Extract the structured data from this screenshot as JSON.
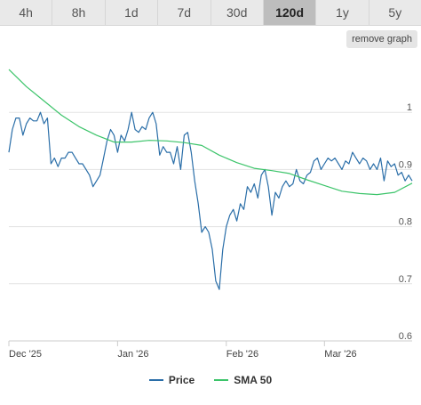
{
  "tabs": [
    {
      "label": "4h",
      "active": false
    },
    {
      "label": "8h",
      "active": false
    },
    {
      "label": "1d",
      "active": false
    },
    {
      "label": "7d",
      "active": false
    },
    {
      "label": "30d",
      "active": false
    },
    {
      "label": "120d",
      "active": true
    },
    {
      "label": "1y",
      "active": false
    },
    {
      "label": "5y",
      "active": false
    }
  ],
  "remove_graph_label": "remove graph",
  "colors": {
    "price": "#2a6ea8",
    "sma": "#3cc46a",
    "grid": "#e3e3e3",
    "tab_active": "#bdbdbd"
  },
  "chart_data": {
    "type": "line",
    "title": "",
    "xlabel": "",
    "ylabel": "",
    "x_tick_labels": [
      "Dec '25",
      "Jan '26",
      "Feb '26",
      "Mar '26"
    ],
    "x_tick_days": [
      0,
      31,
      62,
      90
    ],
    "y_ticks": [
      0.6,
      0.7,
      0.8,
      0.9,
      1
    ],
    "y_tick_labels": [
      "0.6",
      "0.7",
      "0.8",
      "0.9",
      "1"
    ],
    "ylim": [
      0.6,
      1.1
    ],
    "xlim": [
      0,
      115
    ],
    "legend_position": "bottom",
    "grid": true,
    "series": [
      {
        "name": "Price",
        "x": [
          0,
          1,
          2,
          3,
          4,
          5,
          6,
          7,
          8,
          9,
          10,
          11,
          12,
          13,
          14,
          15,
          16,
          17,
          18,
          19,
          20,
          21,
          22,
          23,
          24,
          25,
          26,
          27,
          28,
          29,
          30,
          31,
          32,
          33,
          34,
          35,
          36,
          37,
          38,
          39,
          40,
          41,
          42,
          43,
          44,
          45,
          46,
          47,
          48,
          49,
          50,
          51,
          52,
          53,
          54,
          55,
          56,
          57,
          58,
          59,
          60,
          61,
          62,
          63,
          64,
          65,
          66,
          67,
          68,
          69,
          70,
          71,
          72,
          73,
          74,
          75,
          76,
          77,
          78,
          79,
          80,
          81,
          82,
          83,
          84,
          85,
          86,
          87,
          88,
          89,
          90,
          91,
          92,
          93,
          94,
          95,
          96,
          97,
          98,
          99,
          100,
          101,
          102,
          103,
          104,
          105,
          106,
          107,
          108,
          109,
          110,
          111,
          112,
          113,
          114,
          115
        ],
        "values": [
          0.93,
          0.97,
          0.99,
          0.99,
          0.96,
          0.98,
          0.99,
          0.985,
          0.985,
          1.0,
          0.98,
          0.99,
          0.91,
          0.92,
          0.905,
          0.92,
          0.92,
          0.93,
          0.93,
          0.92,
          0.91,
          0.91,
          0.9,
          0.89,
          0.87,
          0.88,
          0.89,
          0.92,
          0.95,
          0.97,
          0.96,
          0.93,
          0.96,
          0.95,
          0.97,
          1.0,
          0.97,
          0.965,
          0.975,
          0.97,
          0.99,
          1.0,
          0.98,
          0.925,
          0.94,
          0.93,
          0.93,
          0.91,
          0.94,
          0.9,
          0.96,
          0.965,
          0.93,
          0.88,
          0.84,
          0.79,
          0.8,
          0.79,
          0.76,
          0.705,
          0.69,
          0.76,
          0.8,
          0.82,
          0.83,
          0.81,
          0.84,
          0.83,
          0.87,
          0.86,
          0.875,
          0.85,
          0.89,
          0.9,
          0.87,
          0.82,
          0.86,
          0.85,
          0.87,
          0.88,
          0.87,
          0.875,
          0.9,
          0.88,
          0.875,
          0.89,
          0.895,
          0.915,
          0.92,
          0.9,
          0.91,
          0.92,
          0.915,
          0.92,
          0.91,
          0.9,
          0.915,
          0.91,
          0.93,
          0.92,
          0.91,
          0.92,
          0.915,
          0.9,
          0.91,
          0.9,
          0.92,
          0.88,
          0.915,
          0.905,
          0.91,
          0.89,
          0.895,
          0.88,
          0.89,
          0.88
        ],
        "color": "#2a6ea8"
      },
      {
        "name": "SMA 50",
        "x": [
          0,
          5,
          10,
          15,
          20,
          25,
          30,
          35,
          40,
          45,
          50,
          55,
          60,
          65,
          70,
          75,
          80,
          85,
          90,
          95,
          100,
          105,
          110,
          115
        ],
        "values": [
          1.075,
          1.045,
          1.02,
          0.995,
          0.975,
          0.96,
          0.948,
          0.948,
          0.951,
          0.95,
          0.947,
          0.942,
          0.925,
          0.912,
          0.902,
          0.898,
          0.893,
          0.882,
          0.872,
          0.862,
          0.858,
          0.856,
          0.86,
          0.876
        ],
        "color": "#3cc46a"
      }
    ]
  }
}
